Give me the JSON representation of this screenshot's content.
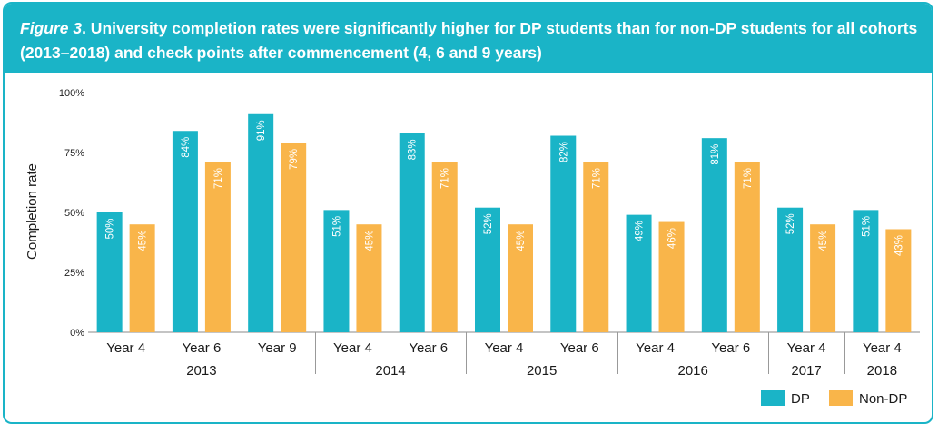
{
  "title": {
    "figure_label": "Figure 3",
    "text": ". University completion rates were significantly higher for DP students than for non-DP students for all cohorts (2013–2018) and check points after commencement (4, 6 and 9 years)"
  },
  "colors": {
    "header": "#1ab4c7",
    "dp": "#1ab4c7",
    "non_dp": "#f9b54a"
  },
  "chart_data": {
    "type": "bar",
    "ylabel": "Completion rate",
    "ylim": [
      0,
      100
    ],
    "yticks": [
      "0%",
      "25%",
      "50%",
      "75%",
      "100%"
    ],
    "ytick_values": [
      0,
      25,
      50,
      75,
      100
    ],
    "legend_position": "bottom-right",
    "groups": [
      {
        "name": "2013",
        "categories": [
          "Year 4",
          "Year 6",
          "Year 9"
        ]
      },
      {
        "name": "2014",
        "categories": [
          "Year 4",
          "Year 6"
        ]
      },
      {
        "name": "2015",
        "categories": [
          "Year 4",
          "Year 6"
        ]
      },
      {
        "name": "2016",
        "categories": [
          "Year 4",
          "Year 6"
        ]
      },
      {
        "name": "2017",
        "categories": [
          "Year 4"
        ]
      },
      {
        "name": "2018",
        "categories": [
          "Year 4"
        ]
      }
    ],
    "series": [
      {
        "name": "DP",
        "values": [
          50,
          84,
          91,
          51,
          83,
          52,
          82,
          49,
          81,
          52,
          51
        ],
        "labels": [
          "50%",
          "84%",
          "91%",
          "51%",
          "83%",
          "52%",
          "82%",
          "49%",
          "81%",
          "52%",
          "51%"
        ]
      },
      {
        "name": "Non-DP",
        "values": [
          45,
          71,
          79,
          45,
          71,
          45,
          71,
          46,
          71,
          45,
          43
        ],
        "labels": [
          "45%",
          "71%",
          "79%",
          "45%",
          "71%",
          "45%",
          "71%",
          "46%",
          "71%",
          "45%",
          "43%"
        ]
      }
    ]
  }
}
